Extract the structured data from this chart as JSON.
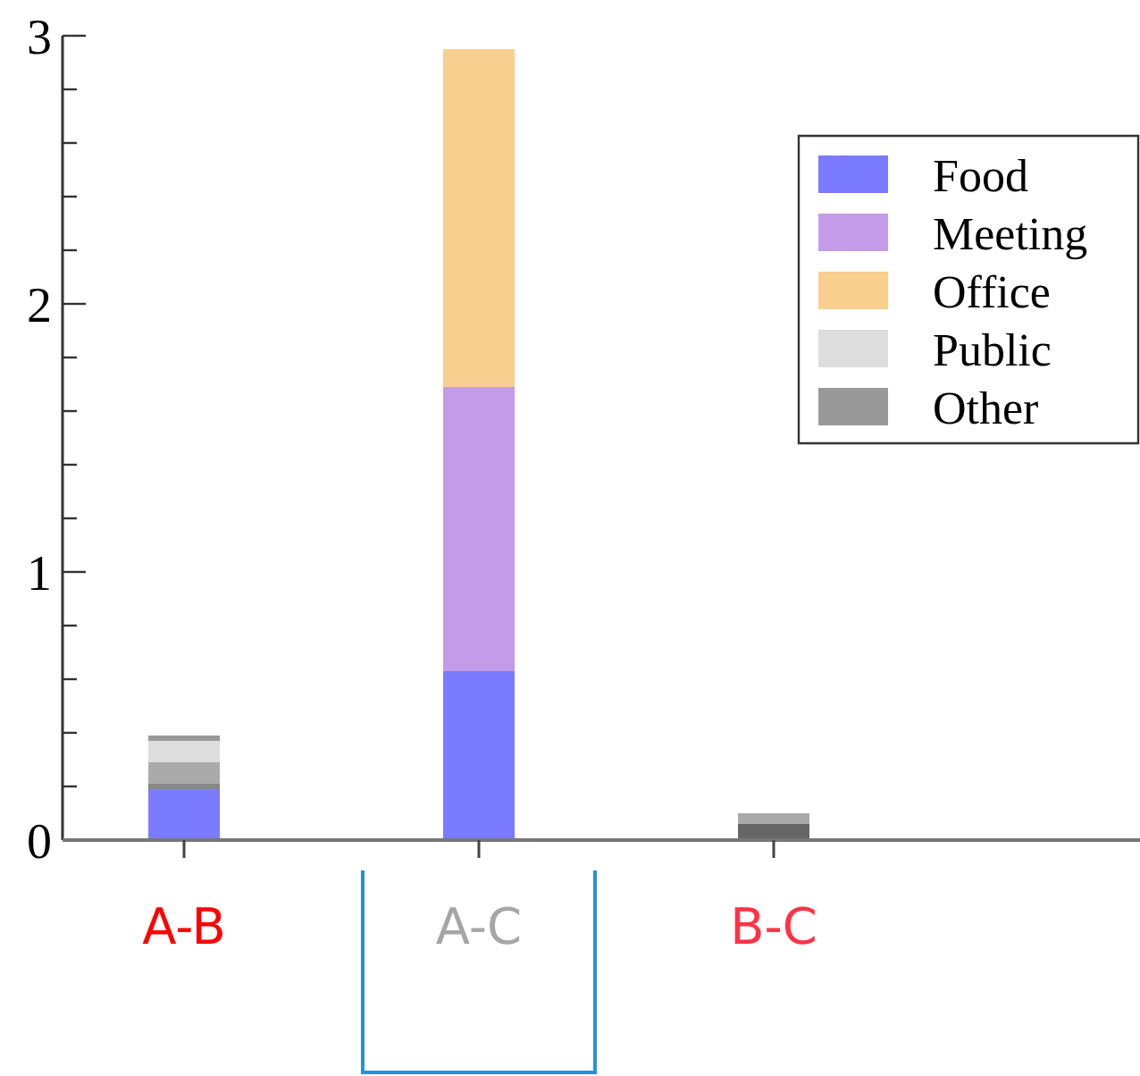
{
  "chart_data": {
    "type": "bar",
    "stacked": true,
    "categories": [
      "A-B",
      "A-C",
      "B-C"
    ],
    "series": [
      {
        "name": "Food",
        "color": "#7b7bff",
        "colors": [
          "#7b7bff",
          "#7b7bff",
          "#666666"
        ],
        "values": [
          0.19,
          0.63,
          0.06
        ]
      },
      {
        "name": "Meeting",
        "color": "#c49be8",
        "colors": [
          "#888888",
          "#c49be8",
          "#888888"
        ],
        "values": [
          0.02,
          1.06,
          0
        ]
      },
      {
        "name": "Office",
        "color": "#f8cf8f",
        "colors": [
          "#aaaaaa",
          "#f8cf8f",
          "#aaaaaa"
        ],
        "values": [
          0.08,
          1.26,
          0.04
        ]
      },
      {
        "name": "Public",
        "color": "#dddddd",
        "values": [
          0.08,
          0,
          0
        ]
      },
      {
        "name": "Other",
        "color": "#999999",
        "colors": [
          "#999999",
          "#999999",
          "#999999"
        ],
        "values": [
          0.02,
          0,
          0
        ]
      }
    ],
    "ylim": [
      0,
      3
    ],
    "yticks": [
      0,
      {
        "value": 0.2,
        "label": null
      },
      {
        "value": 0.4,
        "label": null
      },
      {
        "value": 0.6,
        "label": null
      },
      {
        "value": 0.8,
        "label": null
      },
      1,
      {
        "value": 1.2,
        "label": null
      },
      {
        "value": 1.4,
        "label": null
      },
      {
        "value": 1.6,
        "label": null
      },
      {
        "value": 1.8,
        "label": null
      },
      2,
      {
        "value": 2.2,
        "label": null
      },
      {
        "value": 2.4,
        "label": null
      },
      {
        "value": 2.6,
        "label": null
      },
      {
        "value": 2.8,
        "label": null
      },
      3
    ],
    "grid": false,
    "legend": "top right"
  }
}
